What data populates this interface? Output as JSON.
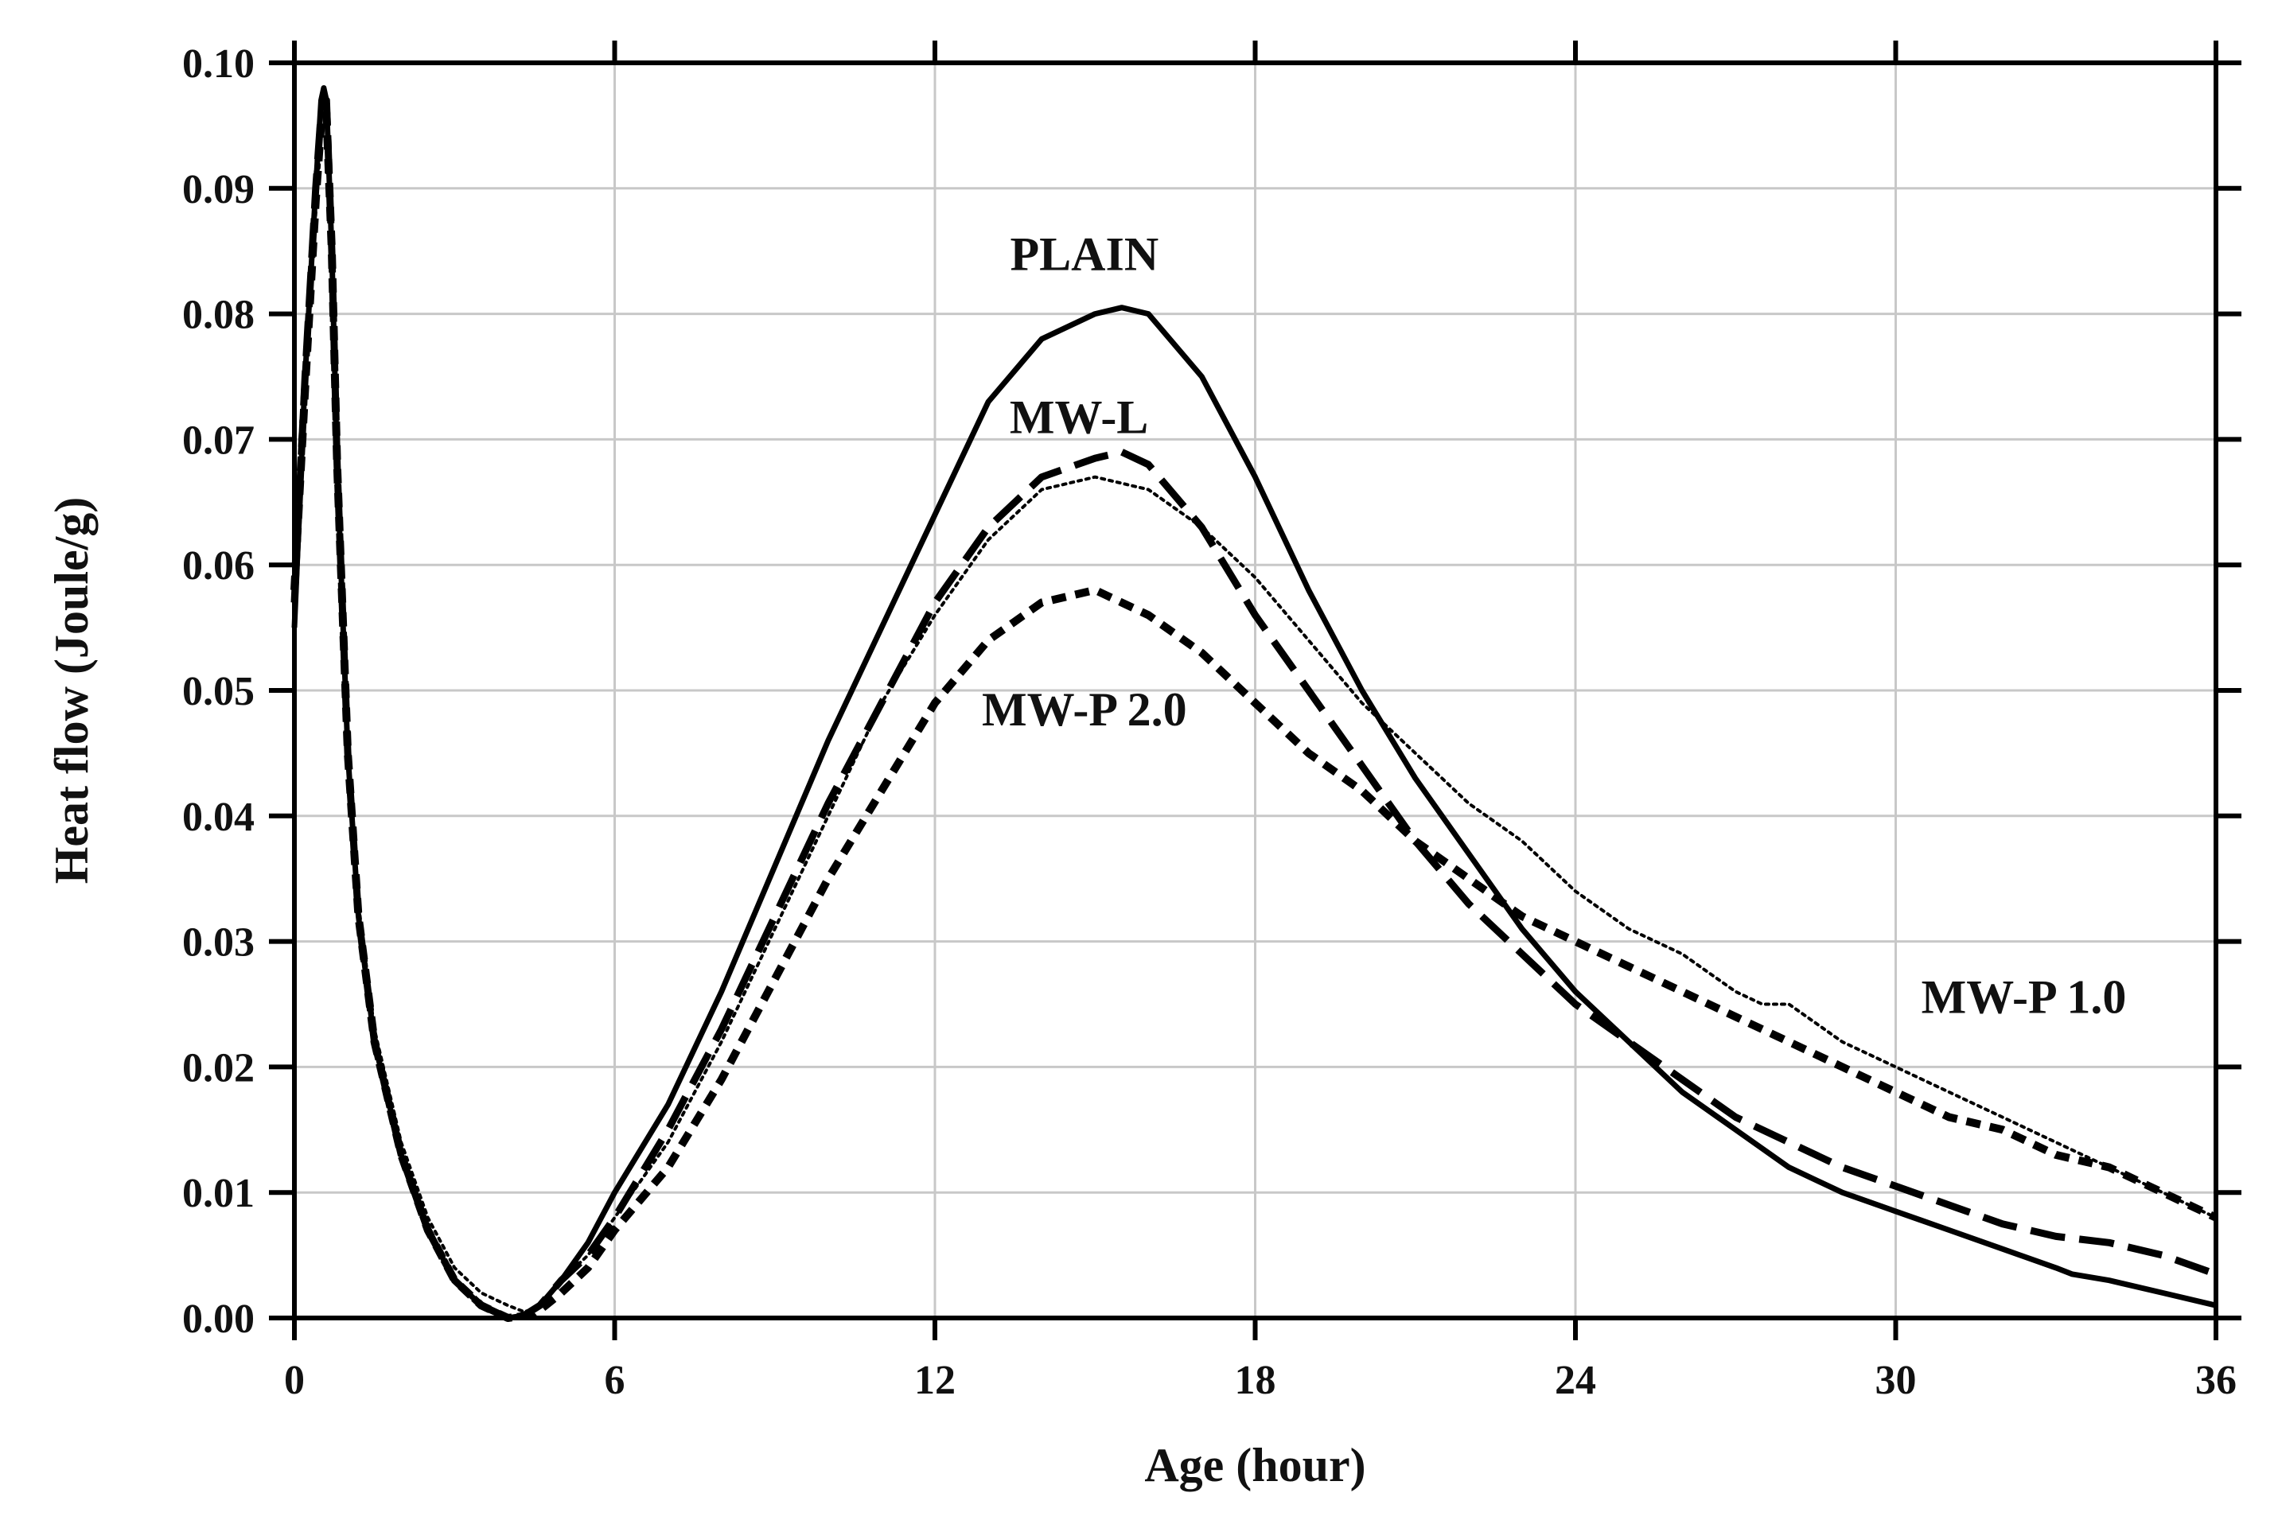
{
  "chart_data": {
    "type": "line",
    "title": "",
    "xlabel": "Age (hour)",
    "ylabel": "Heat flow (Joule/g)",
    "xlim": [
      0,
      36
    ],
    "ylim": [
      0,
      0.1
    ],
    "xticks": [
      0,
      6,
      12,
      18,
      24,
      30,
      36
    ],
    "xtick_labels": [
      "0",
      "6",
      "12",
      "18",
      "24",
      "30",
      "36"
    ],
    "yticks": [
      0,
      0.01,
      0.02,
      0.03,
      0.04,
      0.05,
      0.06,
      0.07,
      0.08,
      0.09,
      0.1
    ],
    "ytick_labels": [
      "0.00",
      "0.01",
      "0.02",
      "0.03",
      "0.04",
      "0.05",
      "0.06",
      "0.07",
      "0.08",
      "0.09",
      "0.10"
    ],
    "grid": true,
    "series": [
      {
        "name": "PLAIN",
        "style": "solid",
        "x": [
          0,
          0.2,
          0.4,
          0.5,
          0.55,
          0.6,
          0.7,
          0.8,
          1.0,
          1.2,
          1.5,
          2.0,
          2.5,
          3.0,
          3.5,
          4.0,
          4.3,
          4.6,
          5.0,
          5.5,
          6.0,
          7.0,
          8.0,
          9.0,
          10.0,
          11.0,
          12.0,
          13.0,
          14.0,
          15.0,
          15.5,
          16.0,
          17.0,
          18.0,
          19.0,
          20.0,
          21.0,
          22.0,
          23.0,
          24.0,
          25.0,
          26.0,
          27.0,
          28.0,
          29.0,
          30.0,
          31.0,
          32.0,
          33.0,
          33.3,
          34.0,
          35.0,
          36.0
        ],
        "y": [
          0.055,
          0.075,
          0.09,
          0.097,
          0.098,
          0.097,
          0.085,
          0.068,
          0.045,
          0.032,
          0.022,
          0.013,
          0.007,
          0.003,
          0.001,
          0.0,
          0.0002,
          0.001,
          0.003,
          0.006,
          0.01,
          0.017,
          0.026,
          0.036,
          0.046,
          0.055,
          0.064,
          0.073,
          0.078,
          0.08,
          0.0805,
          0.08,
          0.075,
          0.067,
          0.058,
          0.05,
          0.043,
          0.037,
          0.031,
          0.026,
          0.022,
          0.018,
          0.015,
          0.012,
          0.01,
          0.0085,
          0.007,
          0.0055,
          0.004,
          0.0035,
          0.003,
          0.002,
          0.001
        ]
      },
      {
        "name": "MW-L",
        "style": "long-dash",
        "x": [
          0,
          0.2,
          0.4,
          0.5,
          0.6,
          0.7,
          0.8,
          1.0,
          1.2,
          1.5,
          2.0,
          2.5,
          3.0,
          3.5,
          4.0,
          4.3,
          4.6,
          5.0,
          5.5,
          6.0,
          7.0,
          8.0,
          9.0,
          10.0,
          11.0,
          12.0,
          13.0,
          14.0,
          15.0,
          15.5,
          16.0,
          17.0,
          18.0,
          19.0,
          20.0,
          21.0,
          22.0,
          23.0,
          24.0,
          25.0,
          26.0,
          27.0,
          28.0,
          29.0,
          30.0,
          31.0,
          32.0,
          33.0,
          34.0,
          35.0,
          36.0
        ],
        "y": [
          0.057,
          0.075,
          0.09,
          0.096,
          0.097,
          0.085,
          0.068,
          0.045,
          0.032,
          0.022,
          0.013,
          0.007,
          0.003,
          0.001,
          0.0,
          0.0002,
          0.001,
          0.003,
          0.005,
          0.008,
          0.015,
          0.023,
          0.032,
          0.041,
          0.049,
          0.057,
          0.063,
          0.067,
          0.0685,
          0.069,
          0.068,
          0.063,
          0.056,
          0.05,
          0.044,
          0.038,
          0.033,
          0.029,
          0.025,
          0.022,
          0.019,
          0.016,
          0.014,
          0.012,
          0.0105,
          0.009,
          0.0075,
          0.0065,
          0.006,
          0.005,
          0.0035
        ]
      },
      {
        "name": "MW-P 1.0",
        "style": "dotted",
        "x": [
          0,
          0.2,
          0.4,
          0.5,
          0.6,
          0.7,
          0.8,
          1.0,
          1.2,
          1.5,
          2.0,
          2.5,
          3.0,
          3.5,
          4.0,
          4.3,
          4.6,
          5.0,
          5.5,
          6.0,
          7.0,
          8.0,
          9.0,
          10.0,
          11.0,
          12.0,
          13.0,
          14.0,
          15.0,
          16.0,
          17.0,
          18.0,
          19.0,
          20.0,
          21.0,
          22.0,
          23.0,
          24.0,
          25.0,
          26.0,
          27.0,
          27.5,
          28.0,
          29.0,
          30.0,
          31.0,
          32.0,
          33.0,
          34.0,
          35.0,
          36.0
        ],
        "y": [
          0.06,
          0.076,
          0.088,
          0.094,
          0.096,
          0.085,
          0.069,
          0.046,
          0.033,
          0.023,
          0.014,
          0.008,
          0.004,
          0.002,
          0.001,
          0.0005,
          0.0008,
          0.003,
          0.005,
          0.008,
          0.014,
          0.022,
          0.031,
          0.04,
          0.049,
          0.056,
          0.062,
          0.066,
          0.067,
          0.066,
          0.063,
          0.059,
          0.054,
          0.049,
          0.045,
          0.041,
          0.038,
          0.034,
          0.031,
          0.029,
          0.026,
          0.025,
          0.025,
          0.022,
          0.02,
          0.018,
          0.016,
          0.014,
          0.012,
          0.01,
          0.008
        ]
      },
      {
        "name": "MW-P 2.0",
        "style": "short-dash",
        "x": [
          0,
          0.2,
          0.4,
          0.5,
          0.6,
          0.7,
          0.8,
          1.0,
          1.2,
          1.5,
          2.0,
          2.5,
          3.0,
          3.5,
          4.0,
          4.5,
          5.0,
          5.5,
          6.0,
          7.0,
          8.0,
          9.0,
          10.0,
          11.0,
          12.0,
          13.0,
          14.0,
          15.0,
          16.0,
          17.0,
          18.0,
          19.0,
          20.0,
          21.0,
          22.0,
          23.0,
          24.0,
          25.0,
          26.0,
          27.0,
          28.0,
          29.0,
          30.0,
          31.0,
          32.0,
          33.0,
          34.0,
          35.0,
          36.0
        ],
        "y": [
          0.058,
          0.074,
          0.089,
          0.095,
          0.096,
          0.085,
          0.068,
          0.045,
          0.032,
          0.022,
          0.013,
          0.007,
          0.003,
          0.001,
          0.0,
          0.0003,
          0.002,
          0.004,
          0.007,
          0.012,
          0.019,
          0.027,
          0.035,
          0.042,
          0.049,
          0.054,
          0.057,
          0.058,
          0.056,
          0.053,
          0.049,
          0.045,
          0.042,
          0.038,
          0.035,
          0.032,
          0.03,
          0.028,
          0.026,
          0.024,
          0.022,
          0.02,
          0.018,
          0.016,
          0.015,
          0.013,
          0.012,
          0.01,
          0.008
        ]
      }
    ],
    "annotations": [
      {
        "text": "PLAIN",
        "x": 14.8,
        "y": 0.0835
      },
      {
        "text": "MW-L",
        "x": 14.7,
        "y": 0.0705
      },
      {
        "text": "MW-P 2.0",
        "x": 14.8,
        "y": 0.0472
      },
      {
        "text": "MW-P 1.0",
        "x": 32.4,
        "y": 0.0243
      }
    ]
  }
}
